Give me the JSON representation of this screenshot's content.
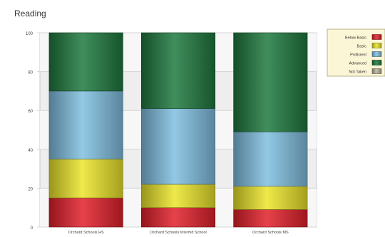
{
  "chart_data": {
    "type": "bar",
    "stacked": true,
    "title": "Reading",
    "xlabel": "",
    "ylabel": "",
    "ylim": [
      0,
      100
    ],
    "yticks": [
      0,
      20,
      40,
      60,
      80,
      100
    ],
    "grid": true,
    "legend_position": "top-right",
    "categories": [
      "Orchard Schools HS",
      "Orchard Schools Intermd School",
      "Orchard Schools MS"
    ],
    "series": [
      {
        "name": "Below Basic",
        "color": "#e3212b",
        "values": [
          15,
          10,
          9
        ]
      },
      {
        "name": "Basic",
        "color": "#ece52b",
        "values": [
          20,
          12,
          12
        ]
      },
      {
        "name": "Proficient",
        "color": "#80bfe0",
        "values": [
          35,
          39,
          28
        ]
      },
      {
        "name": "Advanced",
        "color": "#1f7a3f",
        "values": [
          30,
          39,
          51
        ]
      },
      {
        "name": "Not Taken",
        "color": "#b9b49a",
        "values": [
          0,
          0,
          0
        ]
      }
    ]
  }
}
